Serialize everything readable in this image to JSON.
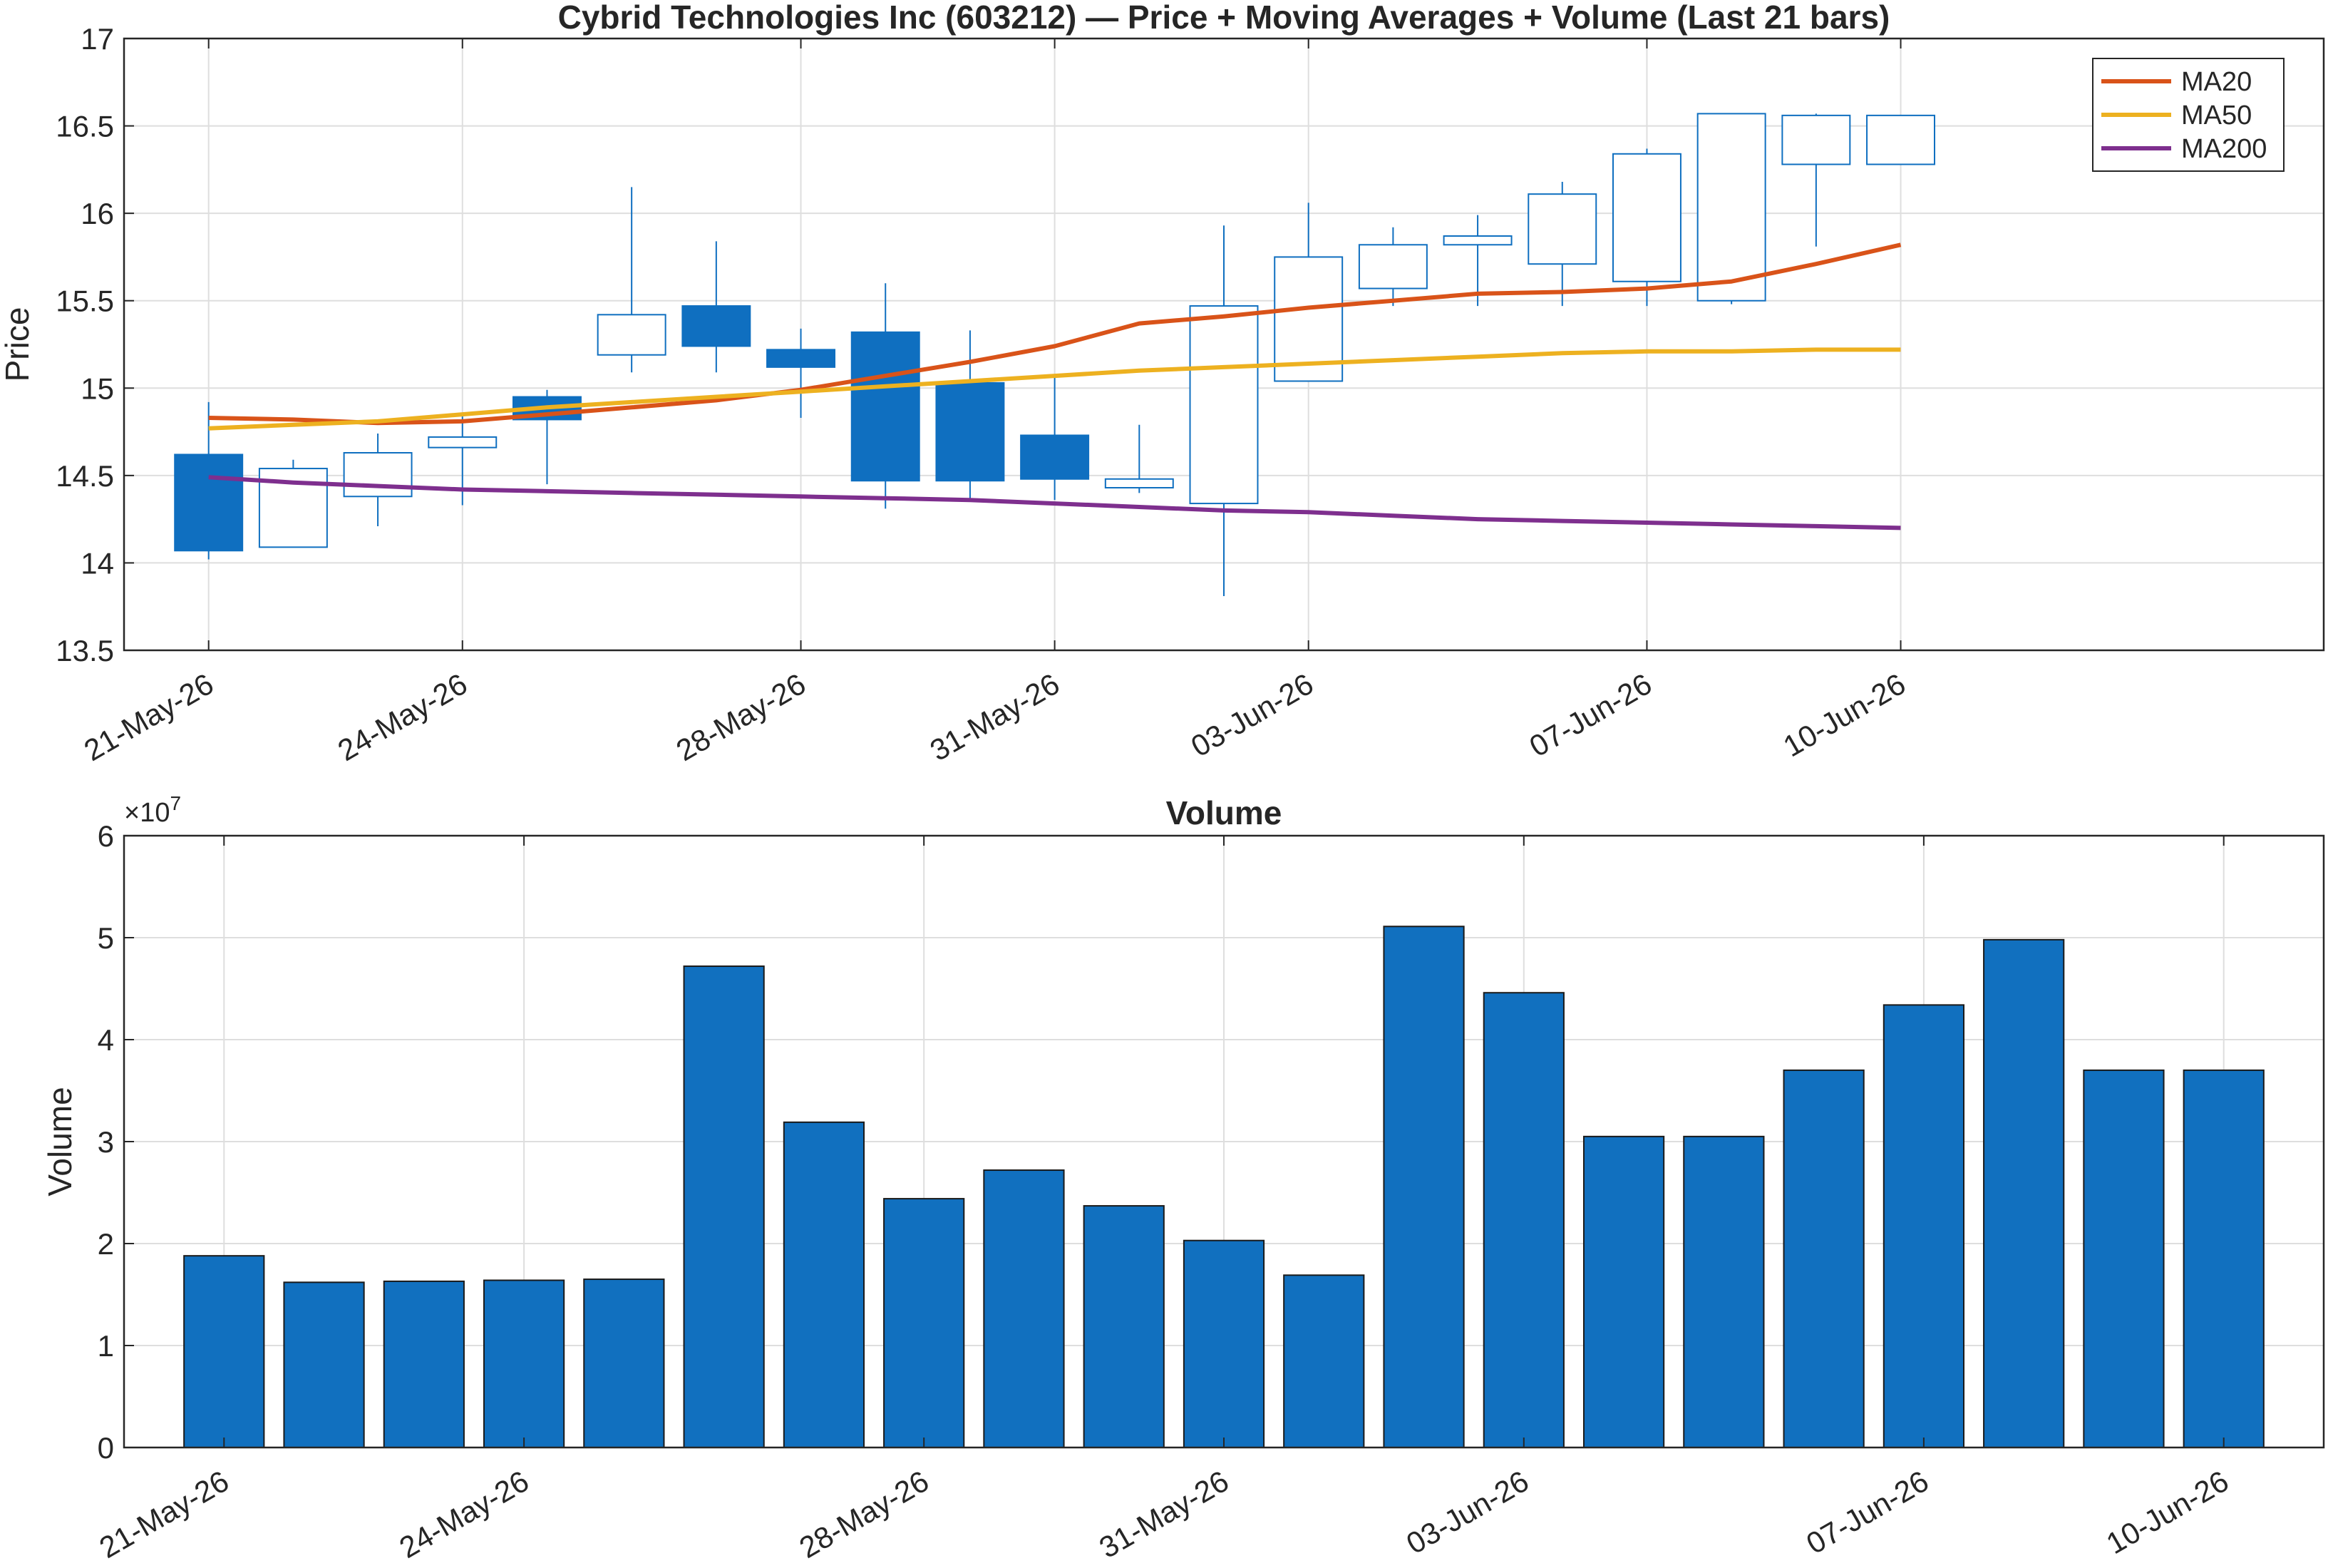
{
  "chart_data": [
    {
      "type": "candlestick",
      "title": "Cybrid Technologies Inc (603212) — Price + Moving Averages + Volume (Last 21 bars)",
      "ylabel": "Price",
      "xlabel": "",
      "ylim": [
        13.5,
        17
      ],
      "yticks": [
        13.5,
        14,
        14.5,
        15,
        15.5,
        16,
        16.5,
        17
      ],
      "yticklabels": [
        "13.5",
        "14",
        "14.5",
        "15",
        "15.5",
        "16",
        "16.5",
        "17"
      ],
      "xlim": [
        "20-May-26",
        "15-Jun-26"
      ],
      "xticks": [
        "21-May-26",
        "24-May-26",
        "28-May-26",
        "31-May-26",
        "03-Jun-26",
        "07-Jun-26",
        "10-Jun-26"
      ],
      "grid": true,
      "legend_position": "top-right",
      "colors": {
        "candle": "#0f6fc0",
        "ma20": "#d95319",
        "ma50": "#edb120",
        "ma200": "#7e2f8e"
      },
      "candles": [
        {
          "date": "21-May-26",
          "open": 14.62,
          "high": 14.92,
          "low": 14.02,
          "close": 14.07
        },
        {
          "date": "22-May-26",
          "open": 14.09,
          "high": 14.59,
          "low": 14.09,
          "close": 14.54
        },
        {
          "date": "23-May-26",
          "open": 14.38,
          "high": 14.74,
          "low": 14.21,
          "close": 14.63
        },
        {
          "date": "24-May-26",
          "open": 14.66,
          "high": 14.84,
          "low": 14.33,
          "close": 14.72
        },
        {
          "date": "25-May-26",
          "open": 14.95,
          "high": 14.99,
          "low": 14.45,
          "close": 14.82
        },
        {
          "date": "26-May-26",
          "open": 15.19,
          "high": 16.15,
          "low": 15.09,
          "close": 15.42
        },
        {
          "date": "27-May-26",
          "open": 15.47,
          "high": 15.84,
          "low": 15.09,
          "close": 15.24
        },
        {
          "date": "28-May-26",
          "open": 15.22,
          "high": 15.34,
          "low": 14.83,
          "close": 15.12
        },
        {
          "date": "29-May-26",
          "open": 15.32,
          "high": 15.6,
          "low": 14.31,
          "close": 14.47
        },
        {
          "date": "30-May-26",
          "open": 15.03,
          "high": 15.33,
          "low": 14.35,
          "close": 14.47
        },
        {
          "date": "31-May-26",
          "open": 14.73,
          "high": 15.06,
          "low": 14.36,
          "close": 14.48
        },
        {
          "date": "01-Jun-26",
          "open": 14.43,
          "high": 14.79,
          "low": 14.4,
          "close": 14.48
        },
        {
          "date": "02-Jun-26",
          "open": 14.34,
          "high": 15.93,
          "low": 13.81,
          "close": 15.47
        },
        {
          "date": "03-Jun-26",
          "open": 15.04,
          "high": 16.06,
          "low": 15.04,
          "close": 15.75
        },
        {
          "date": "04-Jun-26",
          "open": 15.57,
          "high": 15.92,
          "low": 15.47,
          "close": 15.82
        },
        {
          "date": "05-Jun-26",
          "open": 15.82,
          "high": 15.99,
          "low": 15.47,
          "close": 15.87
        },
        {
          "date": "06-Jun-26",
          "open": 15.71,
          "high": 16.18,
          "low": 15.47,
          "close": 16.11
        },
        {
          "date": "07-Jun-26",
          "open": 15.61,
          "high": 16.37,
          "low": 15.47,
          "close": 16.34
        },
        {
          "date": "08-Jun-26",
          "open": 15.5,
          "high": 16.57,
          "low": 15.48,
          "close": 16.57
        },
        {
          "date": "09-Jun-26",
          "open": 16.28,
          "high": 16.57,
          "low": 15.81,
          "close": 16.56
        },
        {
          "date": "10-Jun-26",
          "open": 16.28,
          "high": 16.56,
          "low": 16.28,
          "close": 16.56
        }
      ],
      "series": [
        {
          "name": "MA20",
          "values": [
            14.83,
            14.82,
            14.8,
            14.81,
            14.85,
            14.89,
            14.93,
            14.99,
            15.07,
            15.15,
            15.24,
            15.37,
            15.41,
            15.46,
            15.5,
            15.54,
            15.55,
            15.57,
            15.61,
            15.71,
            15.82
          ]
        },
        {
          "name": "MA50",
          "values": [
            14.77,
            14.79,
            14.81,
            14.85,
            14.89,
            14.92,
            14.95,
            14.98,
            15.01,
            15.04,
            15.07,
            15.1,
            15.12,
            15.14,
            15.16,
            15.18,
            15.2,
            15.21,
            15.21,
            15.22,
            15.22
          ]
        },
        {
          "name": "MA200",
          "values": [
            14.49,
            14.46,
            14.44,
            14.42,
            14.41,
            14.4,
            14.39,
            14.38,
            14.37,
            14.36,
            14.34,
            14.32,
            14.3,
            14.29,
            14.27,
            14.25,
            14.24,
            14.23,
            14.22,
            14.21,
            14.2
          ]
        }
      ]
    },
    {
      "type": "bar",
      "title": "Volume",
      "ylabel": "Volume",
      "xlabel": "",
      "exponent_label": "×10",
      "exponent": "7",
      "ylim": [
        0,
        6
      ],
      "yticks": [
        0,
        1,
        2,
        3,
        4,
        5,
        6
      ],
      "yticklabels": [
        "0",
        "1",
        "2",
        "3",
        "4",
        "5",
        "6"
      ],
      "xlim": [
        "20-May-26",
        "11-Jun-26"
      ],
      "xticks": [
        "21-May-26",
        "24-May-26",
        "28-May-26",
        "31-May-26",
        "03-Jun-26",
        "07-Jun-26",
        "10-Jun-26"
      ],
      "grid": true,
      "colors": {
        "bar": "#1170bf"
      },
      "categories": [
        "21-May-26",
        "22-May-26",
        "23-May-26",
        "24-May-26",
        "25-May-26",
        "26-May-26",
        "27-May-26",
        "28-May-26",
        "29-May-26",
        "30-May-26",
        "31-May-26",
        "01-Jun-26",
        "02-Jun-26",
        "03-Jun-26",
        "04-Jun-26",
        "05-Jun-26",
        "06-Jun-26",
        "07-Jun-26",
        "08-Jun-26",
        "09-Jun-26",
        "10-Jun-26"
      ],
      "values": [
        1.88,
        1.62,
        1.63,
        1.64,
        1.65,
        4.72,
        3.19,
        2.44,
        2.72,
        2.37,
        2.03,
        1.69,
        5.11,
        4.46,
        3.05,
        3.05,
        3.7,
        4.34,
        4.98,
        3.7,
        3.7
      ]
    }
  ]
}
